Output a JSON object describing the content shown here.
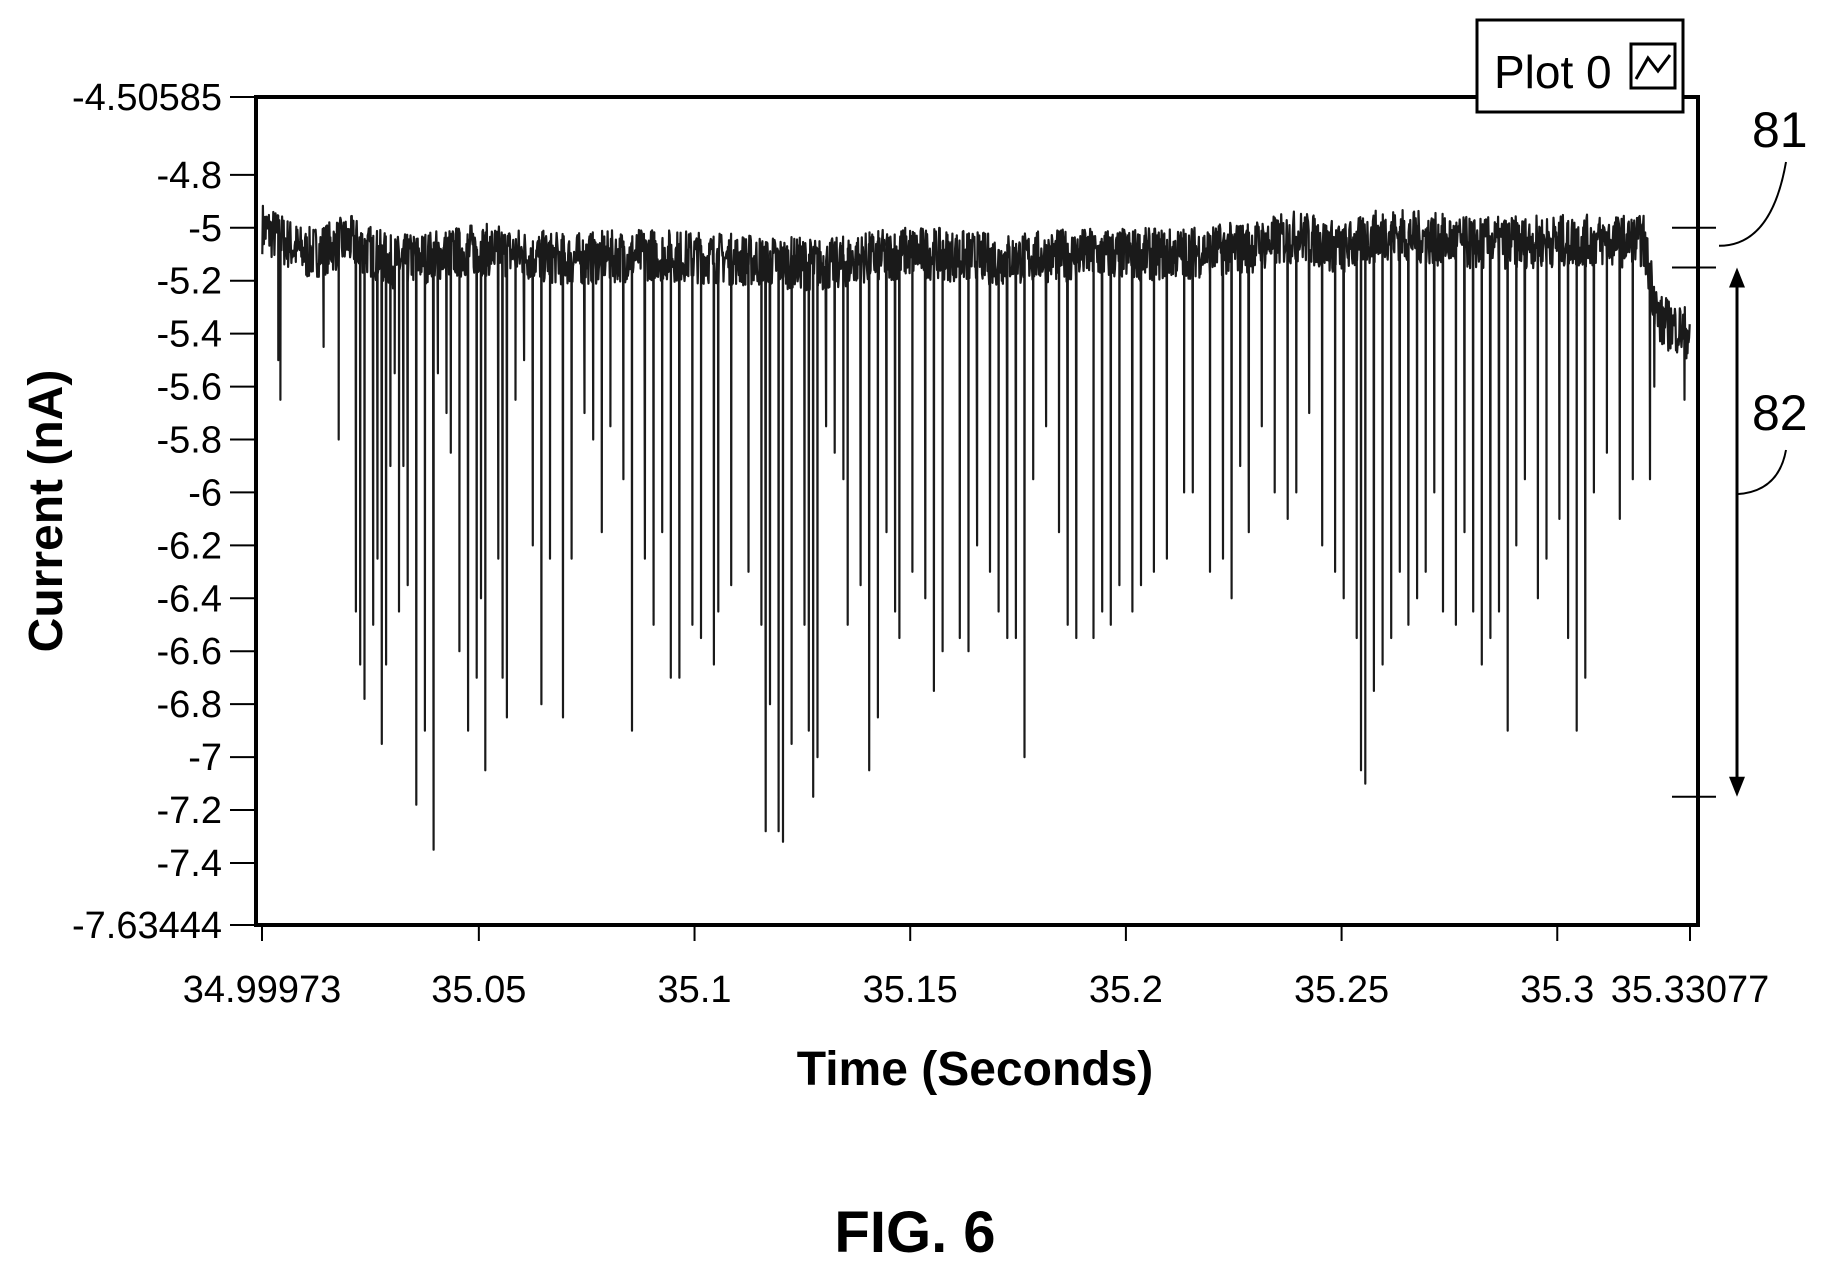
{
  "chart_data": {
    "type": "line",
    "title": "",
    "xlabel": "Time (Seconds)",
    "ylabel": "Current (nA)",
    "xlim": [
      34.99973,
      35.33077
    ],
    "ylim": [
      -7.63444,
      -4.50585
    ],
    "x_ticks": [
      "34.99973",
      "35.05",
      "35.1",
      "35.15",
      "35.2",
      "35.25",
      "35.3",
      "35.33077"
    ],
    "x_tick_values": [
      34.99973,
      35.05,
      35.1,
      35.15,
      35.2,
      35.25,
      35.3,
      35.33077
    ],
    "y_ticks": [
      "-4.50585",
      "-4.8",
      "-5",
      "-5.2",
      "-5.4",
      "-5.6",
      "-5.8",
      "-6",
      "-6.2",
      "-6.4",
      "-6.6",
      "-6.8",
      "-7",
      "-7.2",
      "-7.4",
      "-7.63444"
    ],
    "y_tick_values": [
      -4.50585,
      -4.8,
      -5.0,
      -5.2,
      -5.4,
      -5.6,
      -5.8,
      -6.0,
      -6.2,
      -6.4,
      -6.6,
      -6.8,
      -7.0,
      -7.2,
      -7.4,
      -7.63444
    ],
    "grid": false,
    "legend_position": "top-right",
    "series": [
      {
        "name": "Plot 0",
        "color": "#1a1a1a",
        "baseline": [
          [
            34.9998,
            -5.0
          ],
          [
            35.01,
            -5.1
          ],
          [
            35.02,
            -5.05
          ],
          [
            35.03,
            -5.13
          ],
          [
            35.05,
            -5.08
          ],
          [
            35.07,
            -5.12
          ],
          [
            35.09,
            -5.1
          ],
          [
            35.11,
            -5.12
          ],
          [
            35.13,
            -5.14
          ],
          [
            35.15,
            -5.09
          ],
          [
            35.17,
            -5.12
          ],
          [
            35.19,
            -5.1
          ],
          [
            35.21,
            -5.1
          ],
          [
            35.23,
            -5.07
          ],
          [
            35.24,
            -5.03
          ],
          [
            35.25,
            -5.08
          ],
          [
            35.26,
            -5.02
          ],
          [
            35.28,
            -5.06
          ],
          [
            35.3,
            -5.05
          ],
          [
            35.32,
            -5.05
          ],
          [
            35.3235,
            -5.35
          ],
          [
            35.3307,
            -5.4
          ]
        ],
        "spikes": [
          [
            35.0035,
            -5.5
          ],
          [
            35.004,
            -5.65
          ],
          [
            35.014,
            -5.45
          ],
          [
            35.0175,
            -5.8
          ],
          [
            35.0215,
            -6.45
          ],
          [
            35.0225,
            -6.65
          ],
          [
            35.0235,
            -6.78
          ],
          [
            35.0255,
            -6.5
          ],
          [
            35.0265,
            -6.25
          ],
          [
            35.0275,
            -6.95
          ],
          [
            35.0285,
            -6.65
          ],
          [
            35.0295,
            -5.9
          ],
          [
            35.0305,
            -5.55
          ],
          [
            35.0315,
            -6.45
          ],
          [
            35.0325,
            -5.9
          ],
          [
            35.0335,
            -6.35
          ],
          [
            35.0355,
            -7.18
          ],
          [
            35.0375,
            -6.9
          ],
          [
            35.0395,
            -7.35
          ],
          [
            35.0405,
            -5.55
          ],
          [
            35.0425,
            -5.7
          ],
          [
            35.0435,
            -5.85
          ],
          [
            35.0455,
            -6.6
          ],
          [
            35.0475,
            -6.9
          ],
          [
            35.0495,
            -6.7
          ],
          [
            35.0505,
            -6.4
          ],
          [
            35.0515,
            -7.05
          ],
          [
            35.0545,
            -6.25
          ],
          [
            35.0555,
            -6.7
          ],
          [
            35.0565,
            -6.85
          ],
          [
            35.0585,
            -5.65
          ],
          [
            35.0605,
            -5.5
          ],
          [
            35.0625,
            -6.2
          ],
          [
            35.0645,
            -6.8
          ],
          [
            35.0665,
            -6.25
          ],
          [
            35.0695,
            -6.85
          ],
          [
            35.0715,
            -6.25
          ],
          [
            35.0745,
            -5.7
          ],
          [
            35.0765,
            -5.8
          ],
          [
            35.0785,
            -6.15
          ],
          [
            35.0805,
            -5.75
          ],
          [
            35.0835,
            -5.95
          ],
          [
            35.0855,
            -6.9
          ],
          [
            35.0885,
            -6.25
          ],
          [
            35.0905,
            -6.5
          ],
          [
            35.0925,
            -6.15
          ],
          [
            35.0945,
            -6.7
          ],
          [
            35.0965,
            -6.7
          ],
          [
            35.0995,
            -6.5
          ],
          [
            35.1015,
            -6.55
          ],
          [
            35.1045,
            -6.65
          ],
          [
            35.1055,
            -6.45
          ],
          [
            35.1085,
            -6.35
          ],
          [
            35.1125,
            -6.3
          ],
          [
            35.1155,
            -6.5
          ],
          [
            35.1165,
            -7.28
          ],
          [
            35.1175,
            -6.8
          ],
          [
            35.1195,
            -7.28
          ],
          [
            35.1205,
            -7.32
          ],
          [
            35.1225,
            -6.95
          ],
          [
            35.1255,
            -6.5
          ],
          [
            35.1265,
            -6.9
          ],
          [
            35.1275,
            -7.15
          ],
          [
            35.1285,
            -7.0
          ],
          [
            35.1305,
            -5.75
          ],
          [
            35.1325,
            -5.85
          ],
          [
            35.1345,
            -5.95
          ],
          [
            35.1355,
            -6.5
          ],
          [
            35.1385,
            -6.35
          ],
          [
            35.1405,
            -7.05
          ],
          [
            35.1425,
            -6.85
          ],
          [
            35.1445,
            -6.15
          ],
          [
            35.1465,
            -6.45
          ],
          [
            35.1475,
            -6.55
          ],
          [
            35.1505,
            -6.3
          ],
          [
            35.1535,
            -6.4
          ],
          [
            35.1555,
            -6.75
          ],
          [
            35.1575,
            -6.6
          ],
          [
            35.1615,
            -6.55
          ],
          [
            35.1635,
            -6.6
          ],
          [
            35.1655,
            -6.2
          ],
          [
            35.1685,
            -6.3
          ],
          [
            35.1705,
            -6.45
          ],
          [
            35.1725,
            -6.55
          ],
          [
            35.1745,
            -6.55
          ],
          [
            35.1765,
            -7.0
          ],
          [
            35.1785,
            -5.95
          ],
          [
            35.1815,
            -5.75
          ],
          [
            35.1845,
            -6.15
          ],
          [
            35.1865,
            -6.5
          ],
          [
            35.1885,
            -6.55
          ],
          [
            35.1925,
            -6.55
          ],
          [
            35.1945,
            -6.45
          ],
          [
            35.1965,
            -6.5
          ],
          [
            35.1985,
            -6.35
          ],
          [
            35.2015,
            -6.45
          ],
          [
            35.2035,
            -6.35
          ],
          [
            35.2065,
            -6.3
          ],
          [
            35.2095,
            -6.25
          ],
          [
            35.2135,
            -6.0
          ],
          [
            35.2155,
            -6.0
          ],
          [
            35.2195,
            -6.3
          ],
          [
            35.2225,
            -6.25
          ],
          [
            35.2245,
            -6.4
          ],
          [
            35.2265,
            -5.9
          ],
          [
            35.2285,
            -6.15
          ],
          [
            35.2315,
            -5.75
          ],
          [
            35.2345,
            -6.0
          ],
          [
            35.2375,
            -6.1
          ],
          [
            35.2395,
            -6.0
          ],
          [
            35.2425,
            -5.7
          ],
          [
            35.2455,
            -6.2
          ],
          [
            35.2485,
            -6.3
          ],
          [
            35.2505,
            -6.4
          ],
          [
            35.2535,
            -6.55
          ],
          [
            35.2545,
            -7.05
          ],
          [
            35.2555,
            -7.1
          ],
          [
            35.2575,
            -6.75
          ],
          [
            35.2595,
            -6.65
          ],
          [
            35.2615,
            -6.55
          ],
          [
            35.2635,
            -6.3
          ],
          [
            35.2655,
            -6.5
          ],
          [
            35.2675,
            -6.4
          ],
          [
            35.2695,
            -6.3
          ],
          [
            35.2715,
            -6.0
          ],
          [
            35.2735,
            -6.45
          ],
          [
            35.2765,
            -6.5
          ],
          [
            35.2785,
            -6.15
          ],
          [
            35.2805,
            -6.45
          ],
          [
            35.2825,
            -6.65
          ],
          [
            35.2845,
            -6.55
          ],
          [
            35.2865,
            -6.45
          ],
          [
            35.2885,
            -6.9
          ],
          [
            35.2905,
            -6.2
          ],
          [
            35.2925,
            -5.95
          ],
          [
            35.2955,
            -6.4
          ],
          [
            35.2975,
            -6.25
          ],
          [
            35.3005,
            -6.1
          ],
          [
            35.3025,
            -6.55
          ],
          [
            35.3045,
            -6.9
          ],
          [
            35.3065,
            -6.7
          ],
          [
            35.3085,
            -6.0
          ],
          [
            35.3115,
            -5.85
          ],
          [
            35.3145,
            -6.1
          ],
          [
            35.3175,
            -5.95
          ],
          [
            35.3215,
            -5.95
          ],
          [
            35.3225,
            -5.6
          ],
          [
            35.3245,
            -5.4
          ],
          [
            35.3295,
            -5.65
          ]
        ]
      }
    ],
    "legend": {
      "label": "Plot 0",
      "icon": "line-sample-icon"
    },
    "annotations": {
      "level_81": {
        "label": "81",
        "y": -5.0
      },
      "level_82": {
        "label": "82",
        "y_top": -5.15,
        "y_bottom": -7.15
      }
    },
    "caption": "FIG. 6"
  }
}
